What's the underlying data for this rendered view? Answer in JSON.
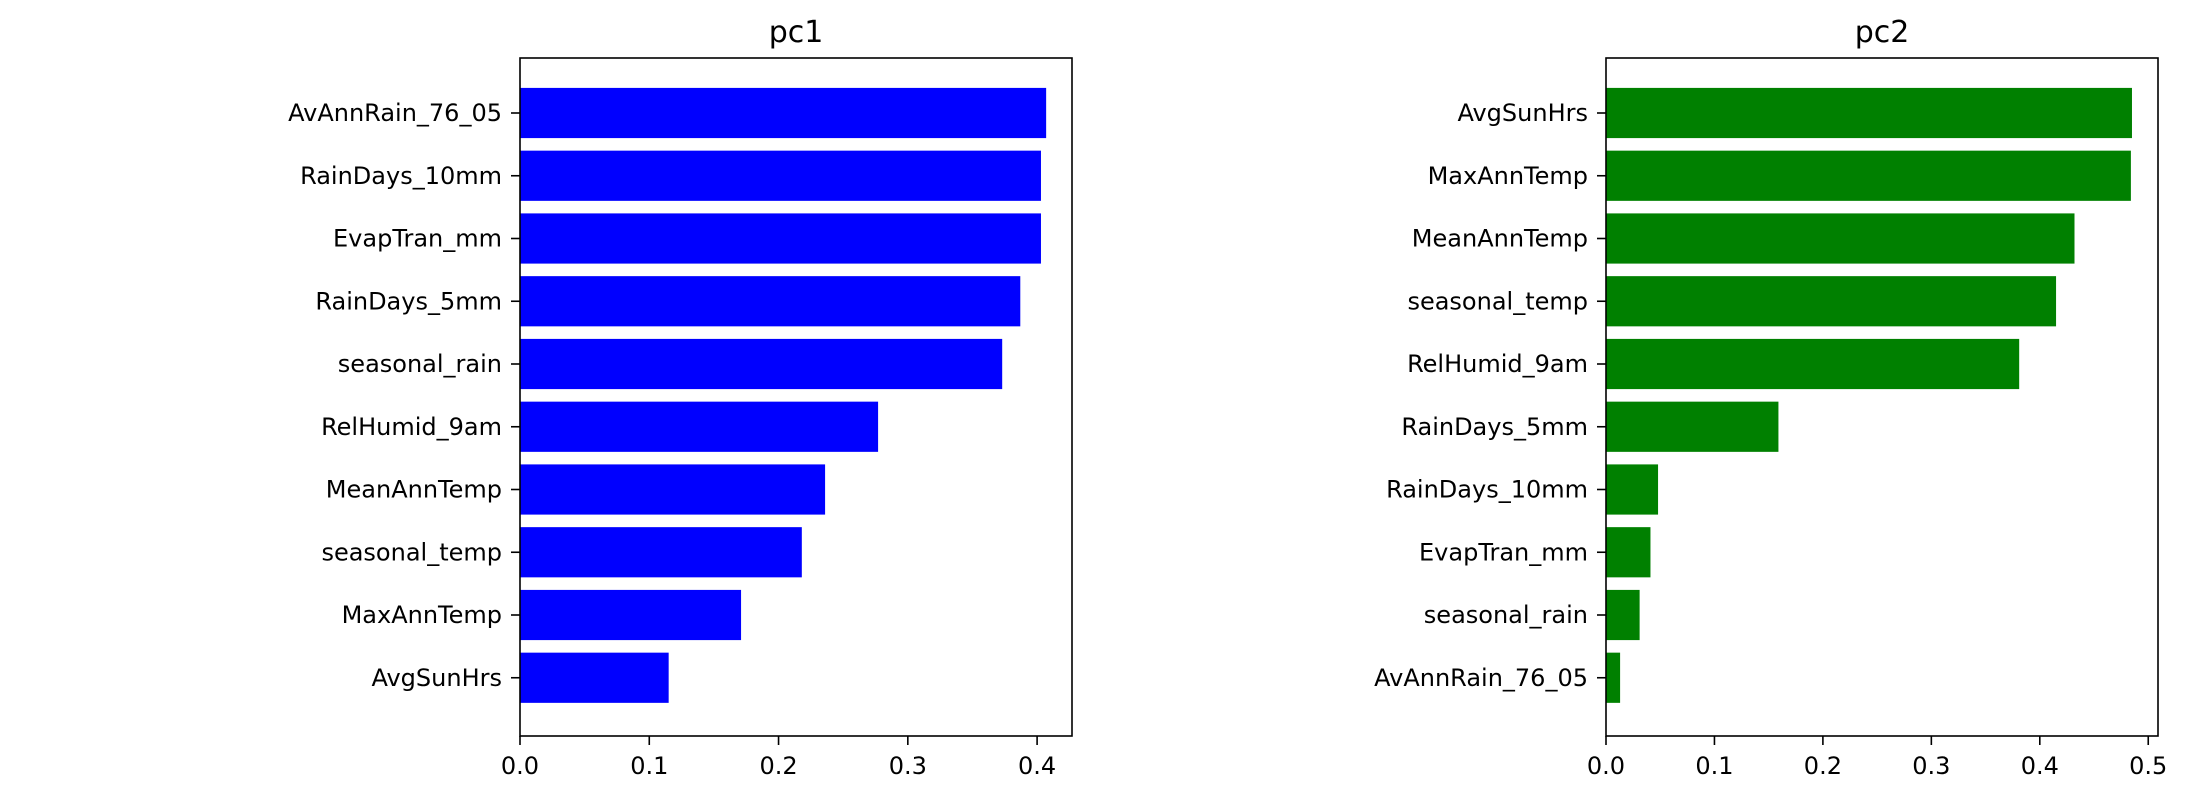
{
  "chart_data": [
    {
      "type": "bar",
      "orientation": "horizontal",
      "title": "pc1",
      "xlabel": "",
      "ylabel": "",
      "color": "#0000ff",
      "xlim": [
        0,
        0.427
      ],
      "xticks": [
        "0.0",
        "0.1",
        "0.2",
        "0.3",
        "0.4"
      ],
      "grid": false,
      "categories": [
        "AvAnnRain_76_05",
        "RainDays_10mm",
        "EvapTran_mm",
        "RainDays_5mm",
        "seasonal_rain",
        "RelHumid_9am",
        "MeanAnnTemp",
        "seasonal_temp",
        "MaxAnnTemp",
        "AvgSunHrs"
      ],
      "values": [
        0.407,
        0.403,
        0.403,
        0.387,
        0.373,
        0.277,
        0.236,
        0.218,
        0.171,
        0.115
      ]
    },
    {
      "type": "bar",
      "orientation": "horizontal",
      "title": "pc2",
      "xlabel": "",
      "ylabel": "",
      "color": "#008000",
      "xlim": [
        0,
        0.509
      ],
      "xticks": [
        "0.0",
        "0.1",
        "0.2",
        "0.3",
        "0.4",
        "0.5"
      ],
      "grid": false,
      "categories": [
        "AvgSunHrs",
        "MaxAnnTemp",
        "MeanAnnTemp",
        "seasonal_temp",
        "RelHumid_9am",
        "RainDays_5mm",
        "RainDays_10mm",
        "EvapTran_mm",
        "seasonal_rain",
        "AvAnnRain_76_05"
      ],
      "values": [
        0.485,
        0.484,
        0.432,
        0.415,
        0.381,
        0.159,
        0.048,
        0.041,
        0.031,
        0.013
      ]
    }
  ]
}
